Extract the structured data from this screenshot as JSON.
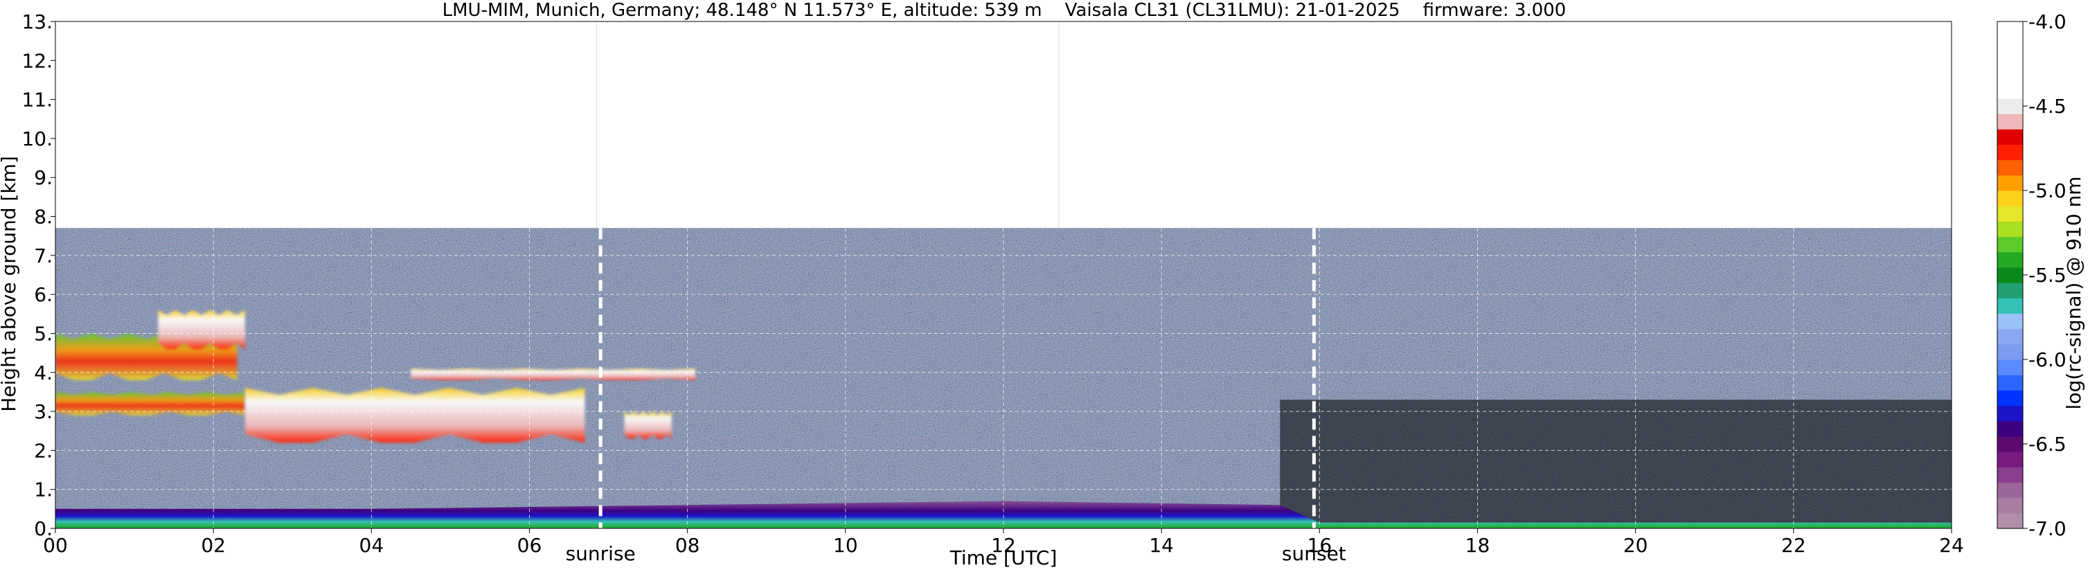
{
  "chart_data": {
    "type": "heatmap",
    "title": "LMU-MIM, Munich, Germany; 48.148° N 11.573° E, altitude: 539 m    Vaisala CL31 (CL31LMU): 21-01-2025    firmware: 3.000",
    "xlabel": "Time [UTC]",
    "ylabel": "Height above ground [km]",
    "xlim": [
      0,
      24
    ],
    "ylim": [
      0,
      13
    ],
    "x_ticks": [
      "00",
      "02",
      "04",
      "06",
      "08",
      "10",
      "12",
      "14",
      "16",
      "18",
      "20",
      "22",
      "24"
    ],
    "y_ticks": [
      "0.",
      "1.",
      "2.",
      "3.",
      "4.",
      "5.",
      "6.",
      "7.",
      "8.",
      "9.",
      "10.",
      "11.",
      "12.",
      "13."
    ],
    "grid": true,
    "data_top_km": 7.7,
    "colorbar": {
      "label": "log(rc-signal) @ 910 nm",
      "range": [
        -7.0,
        -4.0
      ],
      "ticks": [
        "-4.0",
        "-4.5",
        "-5.0",
        "-5.5",
        "-6.0",
        "-6.5",
        "-7.0"
      ],
      "colors": [
        "#b38ea8",
        "#a87da0",
        "#9a6598",
        "#8a3f8e",
        "#7a1a80",
        "#5c0a70",
        "#3d0080",
        "#1c14c8",
        "#0033ff",
        "#2a66ff",
        "#5a8cff",
        "#7b9cf0",
        "#8aa8f2",
        "#99c2f8",
        "#33c0b5",
        "#20a070",
        "#0a8a1a",
        "#22aa22",
        "#5acb2a",
        "#a8e020",
        "#e6e62a",
        "#ffd21a",
        "#ffa000",
        "#ff6000",
        "#ff2000",
        "#e00000",
        "#f0b8b8",
        "#ececec",
        "#ffffff",
        "#ffffff",
        "#ffffff",
        "#ffffff",
        "#ffffff"
      ]
    },
    "annotations": [
      {
        "label": "sunrise",
        "time_utc": 6.9
      },
      {
        "label": "sunset",
        "time_utc": 15.93
      }
    ],
    "cloud_layers": [
      {
        "start_h": 0.0,
        "end_h": 2.3,
        "base_km": 3.8,
        "top_km": 5.0,
        "intensity": "moderate"
      },
      {
        "start_h": 1.3,
        "end_h": 2.4,
        "base_km": 4.6,
        "top_km": 5.6,
        "intensity": "strong"
      },
      {
        "start_h": 0.0,
        "end_h": 2.4,
        "base_km": 2.9,
        "top_km": 3.5,
        "intensity": "moderate"
      },
      {
        "start_h": 2.4,
        "end_h": 6.7,
        "base_km": 2.2,
        "top_km": 3.6,
        "intensity": "strong"
      },
      {
        "start_h": 4.5,
        "end_h": 8.1,
        "base_km": 3.8,
        "top_km": 4.1,
        "intensity": "strong"
      },
      {
        "start_h": 7.2,
        "end_h": 7.8,
        "base_km": 2.3,
        "top_km": 3.0,
        "intensity": "strong"
      }
    ],
    "boundary_layer_km": [
      {
        "time_utc": 0,
        "height_km": 0.5
      },
      {
        "time_utc": 4,
        "height_km": 0.5
      },
      {
        "time_utc": 8,
        "height_km": 0.6
      },
      {
        "time_utc": 12,
        "height_km": 0.7
      },
      {
        "time_utc": 15.5,
        "height_km": 0.6
      },
      {
        "time_utc": 16,
        "height_km": 0.15
      },
      {
        "time_utc": 24,
        "height_km": 0.15
      }
    ]
  }
}
